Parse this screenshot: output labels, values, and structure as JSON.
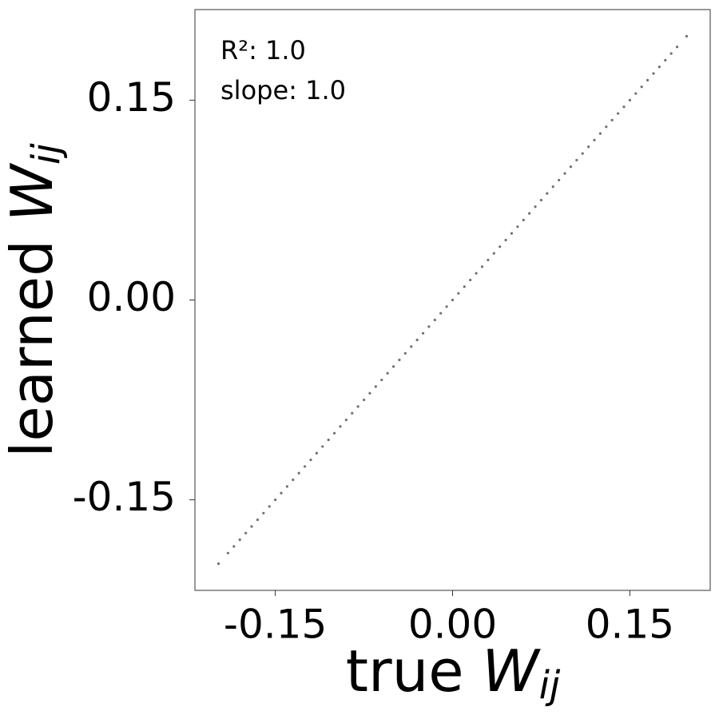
{
  "chart_data": {
    "type": "scatter",
    "xlabel": {
      "text": "true",
      "symbol": "W",
      "subscript": "ij"
    },
    "ylabel": {
      "text": "learned",
      "symbol": "W",
      "subscript": "ij"
    },
    "annotations": [
      "R²: 1.0",
      "slope: 1.0"
    ],
    "color": "#333333",
    "x": [
      -0.198,
      -0.19,
      -0.185,
      -0.18,
      -0.175,
      -0.17,
      -0.165,
      -0.16,
      -0.155,
      -0.15,
      -0.145,
      -0.14,
      -0.135,
      -0.13,
      -0.125,
      -0.12,
      -0.115,
      -0.11,
      -0.105,
      -0.1,
      -0.095,
      -0.09,
      -0.085,
      -0.08,
      -0.075,
      -0.07,
      -0.065,
      -0.06,
      -0.055,
      -0.05,
      -0.045,
      -0.04,
      -0.035,
      -0.03,
      -0.025,
      -0.02,
      -0.015,
      -0.01,
      -0.005,
      0,
      0.005,
      0.01,
      0.015,
      0.02,
      0.025,
      0.03,
      0.035,
      0.04,
      0.045,
      0.05,
      0.055,
      0.06,
      0.065,
      0.07,
      0.075,
      0.08,
      0.085,
      0.09,
      0.095,
      0.1,
      0.105,
      0.11,
      0.115,
      0.12,
      0.125,
      0.13,
      0.135,
      0.14,
      0.145,
      0.15,
      0.155,
      0.16,
      0.165,
      0.17,
      0.175,
      0.18,
      0.185,
      0.19,
      0.198
    ],
    "y": [
      -0.198,
      -0.19,
      -0.185,
      -0.18,
      -0.175,
      -0.17,
      -0.165,
      -0.16,
      -0.155,
      -0.15,
      -0.145,
      -0.14,
      -0.135,
      -0.13,
      -0.125,
      -0.12,
      -0.115,
      -0.11,
      -0.105,
      -0.1,
      -0.095,
      -0.09,
      -0.085,
      -0.08,
      -0.075,
      -0.07,
      -0.065,
      -0.06,
      -0.055,
      -0.05,
      -0.045,
      -0.04,
      -0.035,
      -0.03,
      -0.025,
      -0.02,
      -0.015,
      -0.01,
      -0.005,
      0,
      0.005,
      0.01,
      0.015,
      0.02,
      0.025,
      0.03,
      0.035,
      0.04,
      0.045,
      0.05,
      0.055,
      0.06,
      0.065,
      0.07,
      0.075,
      0.08,
      0.085,
      0.09,
      0.095,
      0.1,
      0.105,
      0.11,
      0.115,
      0.12,
      0.125,
      0.13,
      0.135,
      0.14,
      0.145,
      0.15,
      0.155,
      0.16,
      0.165,
      0.17,
      0.175,
      0.18,
      0.185,
      0.19,
      0.198
    ],
    "xlim": [
      -0.218,
      0.218
    ],
    "ylim": [
      -0.218,
      0.218
    ],
    "xticks": [
      -0.15,
      {
        "value": 0,
        "label": "0.00"
      },
      0.15
    ],
    "yticks": [
      -0.15,
      {
        "value": 0,
        "label": "0.00"
      },
      0.15
    ],
    "grid": false
  }
}
